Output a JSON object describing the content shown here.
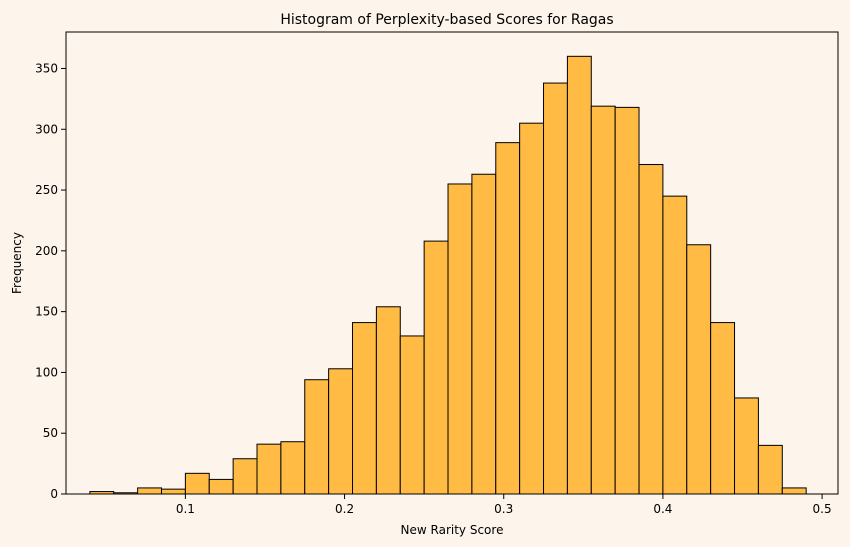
{
  "chart_data": {
    "type": "bar",
    "title": "Histogram of Perplexity-based Scores for Ragas",
    "xlabel": "New Rarity Score",
    "ylabel": "Frequency",
    "xlim": [
      0.025,
      0.51
    ],
    "ylim": [
      0,
      380
    ],
    "xticks": [
      0.1,
      0.2,
      0.3,
      0.4,
      0.5
    ],
    "yticks": [
      0,
      50,
      100,
      150,
      200,
      250,
      300,
      350
    ],
    "bin_start": 0.04,
    "bin_width": 0.015,
    "values": [
      2,
      1,
      5,
      4,
      17,
      12,
      29,
      41,
      43,
      94,
      103,
      141,
      154,
      130,
      208,
      255,
      263,
      289,
      305,
      338,
      360,
      319,
      318,
      271,
      245,
      205,
      141,
      79,
      40,
      5
    ],
    "colors": {
      "bar_fill": "#ffbb44",
      "bar_edge": "#000000",
      "background": "#fdf5ec"
    },
    "grid": false
  }
}
